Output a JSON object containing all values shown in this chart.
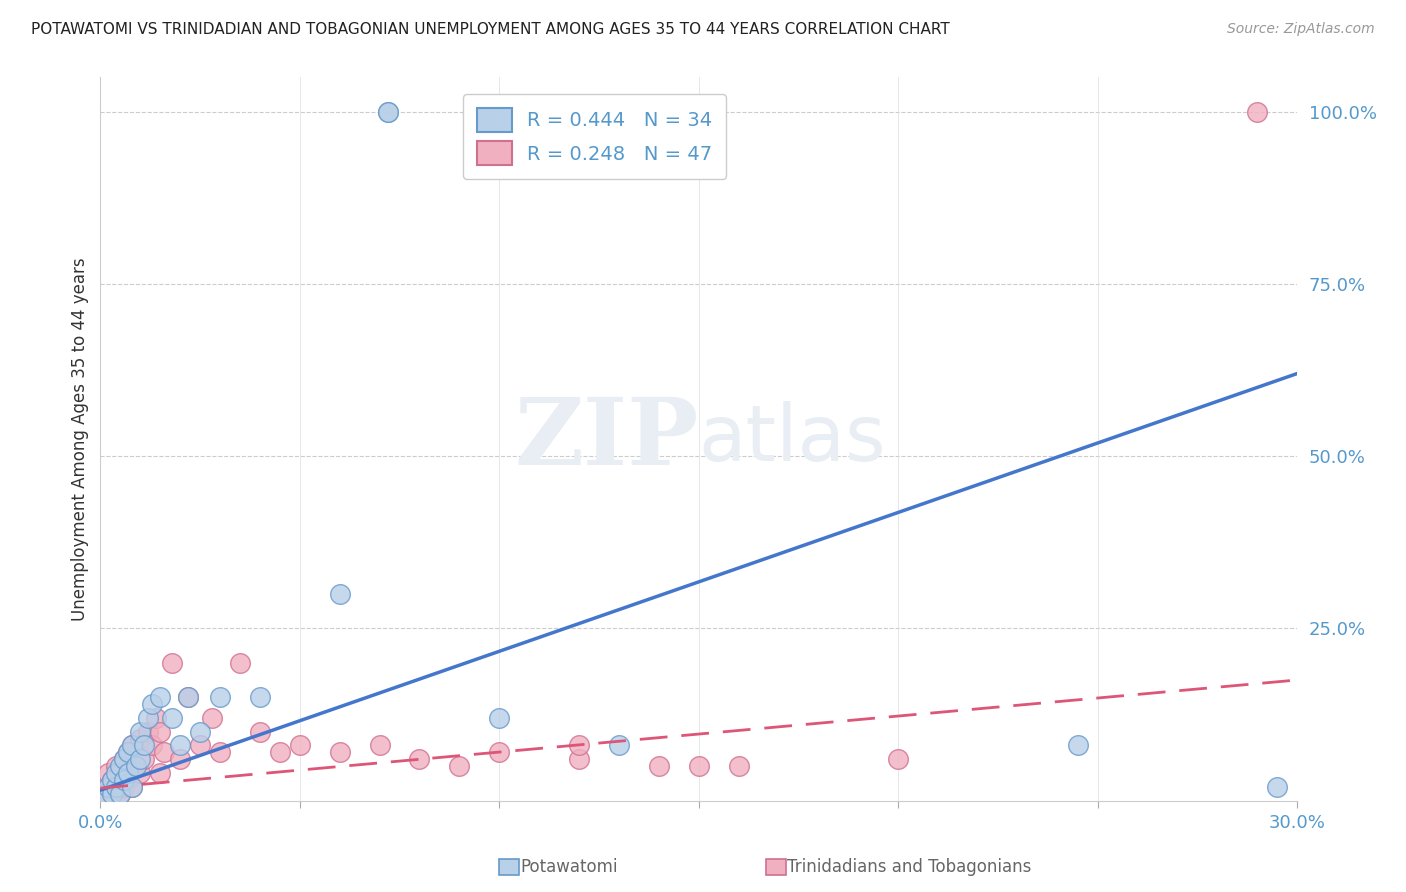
{
  "title": "POTAWATOMI VS TRINIDADIAN AND TOBAGONIAN UNEMPLOYMENT AMONG AGES 35 TO 44 YEARS CORRELATION CHART",
  "source": "Source: ZipAtlas.com",
  "ylabel": "Unemployment Among Ages 35 to 44 years",
  "potawatomi_color": "#b8d0e8",
  "potawatomi_edge": "#6699cc",
  "trinidadian_color": "#f0b0c0",
  "trinidadian_edge": "#d07090",
  "trendline_blue": "#4477cc",
  "trendline_pink": "#dd5577",
  "watermark_color": "#e8eef4",
  "legend_r1": "R = 0.444",
  "legend_n1": "N = 34",
  "legend_r2": "R = 0.248",
  "legend_n2": "N = 47",
  "legend_text_color": "#5599cc",
  "tick_color": "#5599cc",
  "ylabel_color": "#333333",
  "title_color": "#222222",
  "source_color": "#999999",
  "xlim": [
    0.0,
    0.3
  ],
  "ylim": [
    0.0,
    1.05
  ],
  "pot_x": [
    0.001,
    0.002,
    0.003,
    0.003,
    0.004,
    0.004,
    0.005,
    0.005,
    0.006,
    0.006,
    0.007,
    0.007,
    0.008,
    0.008,
    0.009,
    0.01,
    0.01,
    0.011,
    0.012,
    0.013,
    0.015,
    0.018,
    0.02,
    0.022,
    0.025,
    0.03,
    0.04,
    0.06,
    0.1,
    0.13,
    0.072,
    0.072,
    0.245,
    0.295
  ],
  "pot_y": [
    0.01,
    0.02,
    0.01,
    0.03,
    0.02,
    0.04,
    0.01,
    0.05,
    0.03,
    0.06,
    0.04,
    0.07,
    0.02,
    0.08,
    0.05,
    0.06,
    0.1,
    0.08,
    0.12,
    0.14,
    0.15,
    0.12,
    0.08,
    0.15,
    0.1,
    0.15,
    0.15,
    0.3,
    0.12,
    0.08,
    1.0,
    1.0,
    0.08,
    0.02
  ],
  "tri_x": [
    0.001,
    0.002,
    0.002,
    0.003,
    0.003,
    0.004,
    0.004,
    0.005,
    0.005,
    0.006,
    0.006,
    0.007,
    0.007,
    0.008,
    0.008,
    0.009,
    0.01,
    0.01,
    0.011,
    0.012,
    0.013,
    0.014,
    0.015,
    0.015,
    0.016,
    0.018,
    0.02,
    0.022,
    0.025,
    0.028,
    0.03,
    0.035,
    0.04,
    0.045,
    0.05,
    0.06,
    0.07,
    0.08,
    0.1,
    0.12,
    0.14,
    0.16,
    0.2,
    0.12,
    0.15,
    0.29,
    0.09
  ],
  "tri_y": [
    0.01,
    0.02,
    0.04,
    0.01,
    0.03,
    0.02,
    0.05,
    0.01,
    0.04,
    0.02,
    0.06,
    0.03,
    0.07,
    0.02,
    0.08,
    0.05,
    0.04,
    0.09,
    0.06,
    0.1,
    0.08,
    0.12,
    0.04,
    0.1,
    0.07,
    0.2,
    0.06,
    0.15,
    0.08,
    0.12,
    0.07,
    0.2,
    0.1,
    0.07,
    0.08,
    0.07,
    0.08,
    0.06,
    0.07,
    0.06,
    0.05,
    0.05,
    0.06,
    0.08,
    0.05,
    1.0,
    0.05
  ]
}
